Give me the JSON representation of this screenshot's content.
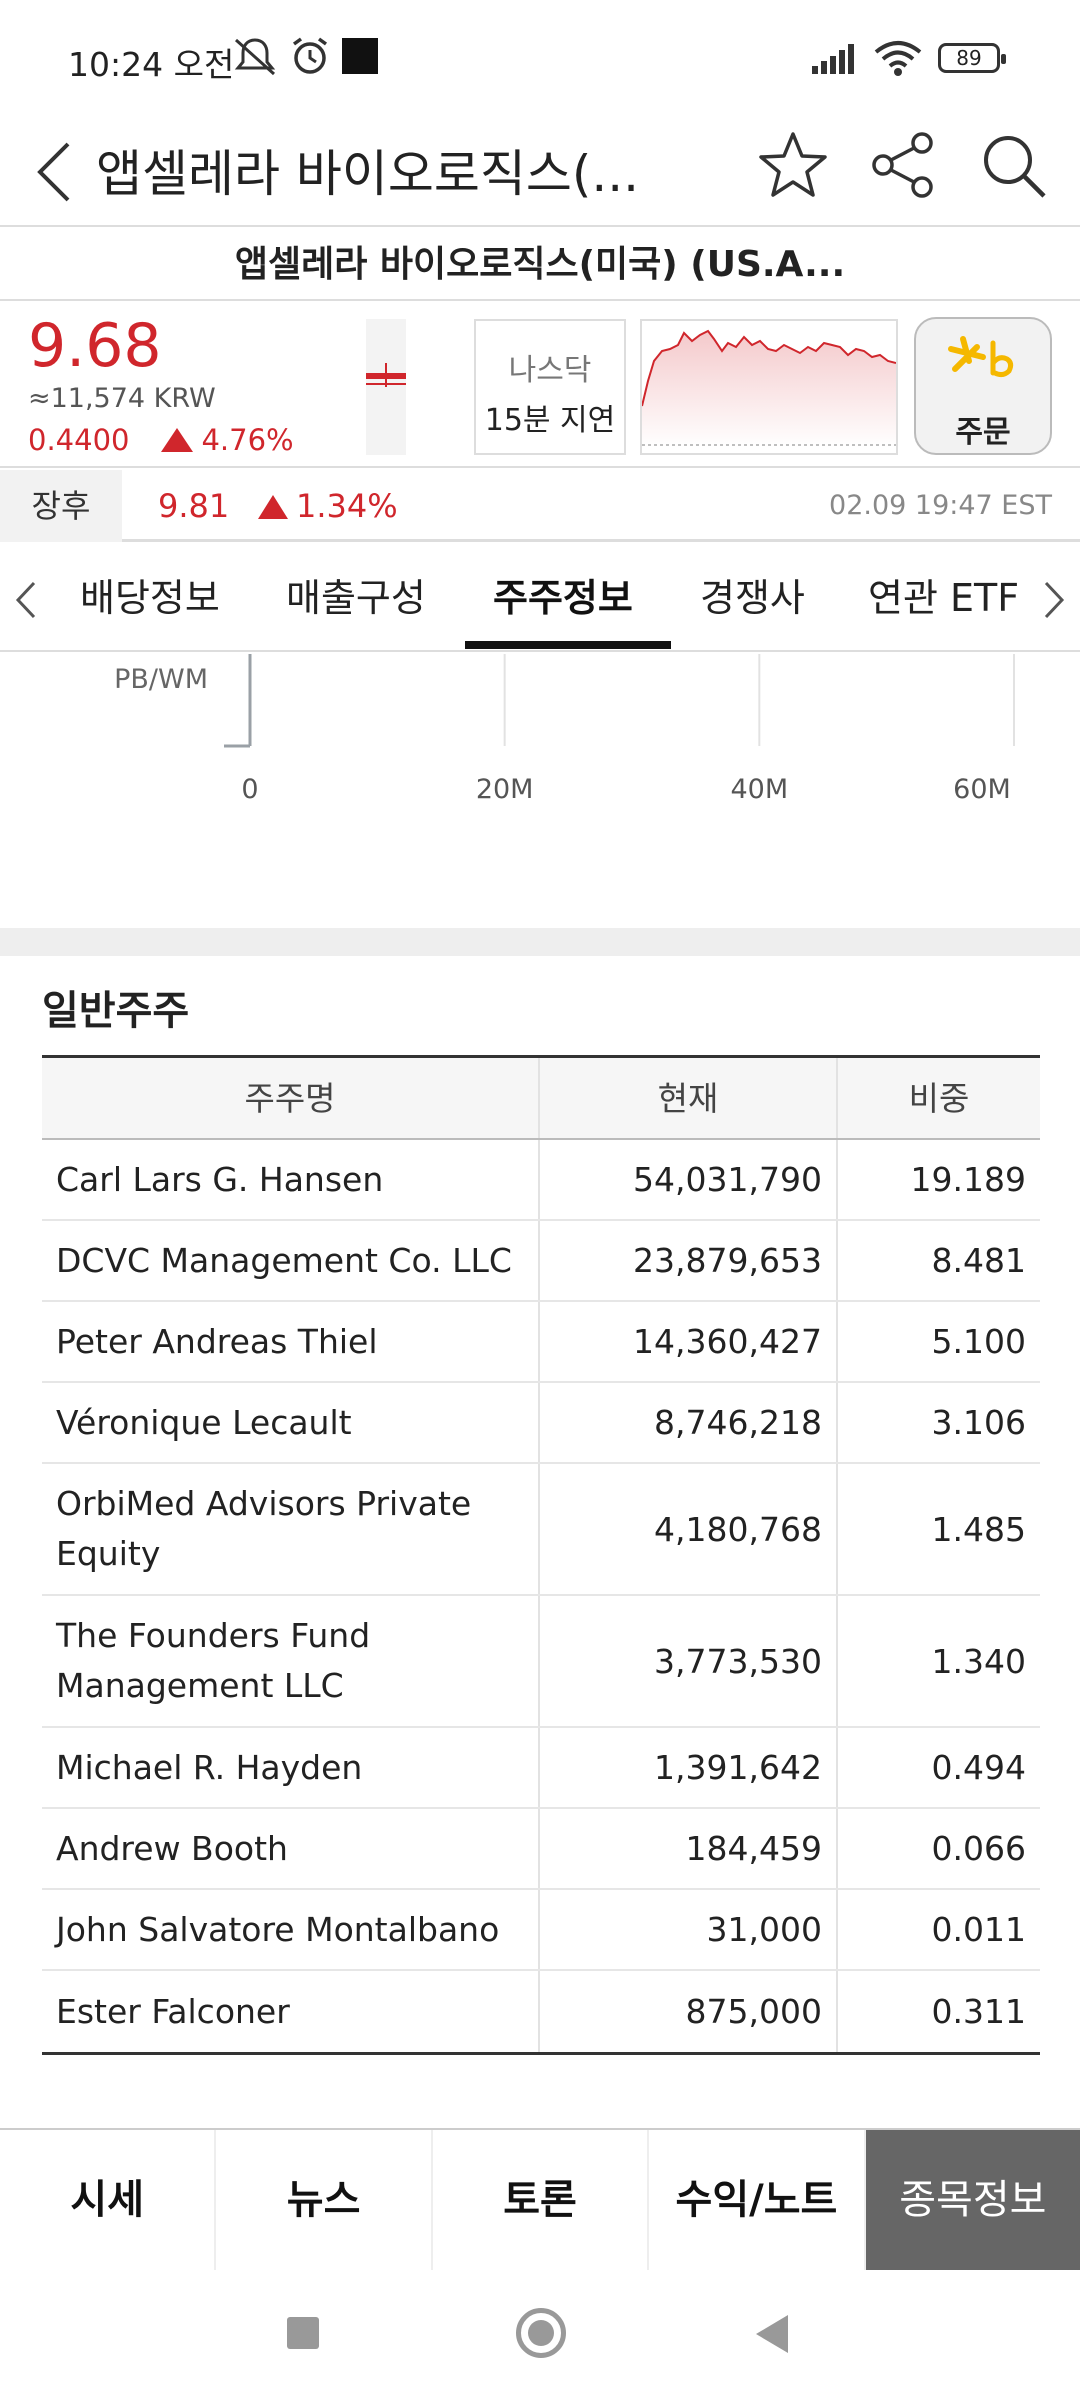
{
  "status_bar": {
    "time": "10:24 오전",
    "battery": "89",
    "icons": [
      "mute-icon",
      "alarm-icon",
      "notification-square-icon",
      "signal-icon",
      "wifi-icon",
      "battery-icon"
    ]
  },
  "header": {
    "title": "앱셀레라 바이오로직스(...",
    "icons": [
      "back-icon",
      "star-icon",
      "share-icon",
      "search-icon"
    ]
  },
  "stock": {
    "full_name": "앱셀레라 바이오로직스(미국) (US.A...",
    "price": "9.68",
    "krw": "≈11,574 KRW",
    "change_amount": "0.4400",
    "change_percent": "4.76%",
    "market_name": "나스닥",
    "market_delay": "15분 지연",
    "order_label": "주문",
    "accent_color": "#d0262c"
  },
  "after_hours": {
    "label": "장후",
    "price": "9.81",
    "change_percent": "1.34%",
    "timestamp": "02.09 19:47 EST"
  },
  "tabs": [
    {
      "label": "배당정보",
      "active": false
    },
    {
      "label": "매출구성",
      "active": false
    },
    {
      "label": "주주정보",
      "active": true
    },
    {
      "label": "경쟁사",
      "active": false
    },
    {
      "label": "연관 ETF",
      "active": false
    }
  ],
  "chart_data": {
    "type": "bar",
    "categories": [
      "PB/WM"
    ],
    "values": [
      0
    ],
    "x_tick_labels": [
      "0",
      "20M",
      "40M",
      "60M"
    ],
    "xlim": [
      0,
      60000000
    ],
    "grid": true
  },
  "shareholders": {
    "section_title": "일반주주",
    "headers": [
      "주주명",
      "현재",
      "비중"
    ],
    "rows": [
      {
        "name": "Carl Lars G. Hansen",
        "current": "54,031,790",
        "weight": "19.189"
      },
      {
        "name": "DCVC Management Co. LLC",
        "current": "23,879,653",
        "weight": "8.481"
      },
      {
        "name": "Peter Andreas Thiel",
        "current": "14,360,427",
        "weight": "5.100"
      },
      {
        "name": "Véronique Lecault",
        "current": "8,746,218",
        "weight": "3.106"
      },
      {
        "name": "OrbiMed Advisors Private Equity",
        "current": "4,180,768",
        "weight": "1.485"
      },
      {
        "name": "The Founders Fund Management LLC",
        "current": "3,773,530",
        "weight": "1.340"
      },
      {
        "name": "Michael R. Hayden",
        "current": "1,391,642",
        "weight": "0.494"
      },
      {
        "name": "Andrew Booth",
        "current": "184,459",
        "weight": "0.066"
      },
      {
        "name": "John Salvatore Montalbano",
        "current": "31,000",
        "weight": "0.011"
      },
      {
        "name": "Ester Falconer",
        "current": "875,000",
        "weight": "0.311"
      }
    ]
  },
  "bottom_nav": [
    {
      "label": "시세",
      "active": false
    },
    {
      "label": "뉴스",
      "active": false
    },
    {
      "label": "토론",
      "active": false
    },
    {
      "label": "수익/노트",
      "active": false
    },
    {
      "label": "종목정보",
      "active": true
    }
  ],
  "system_nav": [
    "recents-icon",
    "home-icon",
    "back-nav-icon"
  ]
}
